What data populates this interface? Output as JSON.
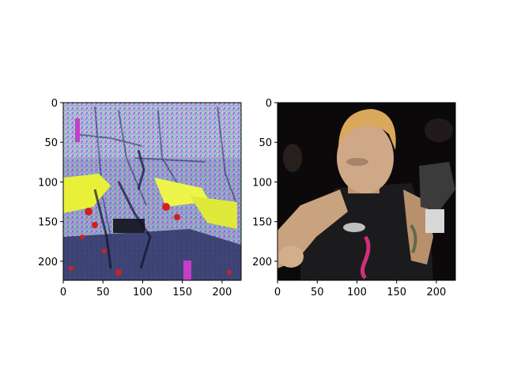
{
  "chart_data": [
    {
      "type": "image",
      "title": "",
      "xlabel": "",
      "ylabel": "",
      "xlim": [
        0,
        224
      ],
      "ylim": [
        224,
        0
      ],
      "x_ticks": [
        {
          "value": 0,
          "label": "0"
        },
        {
          "value": 50,
          "label": "50"
        },
        {
          "value": 100,
          "label": "100"
        },
        {
          "value": 150,
          "label": "150"
        },
        {
          "value": 200,
          "label": "200"
        }
      ],
      "y_ticks": [
        {
          "value": 0,
          "label": "0"
        },
        {
          "value": 50,
          "label": "50"
        },
        {
          "value": 100,
          "label": "100"
        },
        {
          "value": 150,
          "label": "150"
        },
        {
          "value": 200,
          "label": "200"
        }
      ],
      "content": "glitched-colorized-photo",
      "colors": {
        "base": "#9aa3cf",
        "highlight": "#e8f03a",
        "accent_red": "#d21f22",
        "accent_magenta": "#c23fc8",
        "dark": "#2f3566"
      }
    },
    {
      "type": "image",
      "title": "",
      "xlabel": "",
      "ylabel": "",
      "xlim": [
        0,
        224
      ],
      "ylim": [
        224,
        0
      ],
      "x_ticks": [
        {
          "value": 0,
          "label": "0"
        },
        {
          "value": 50,
          "label": "50"
        },
        {
          "value": 100,
          "label": "100"
        },
        {
          "value": 150,
          "label": "150"
        },
        {
          "value": 200,
          "label": "200"
        }
      ],
      "y_ticks": [
        {
          "value": 0,
          "label": "0"
        },
        {
          "value": 50,
          "label": "50"
        },
        {
          "value": 100,
          "label": "100"
        },
        {
          "value": 150,
          "label": "150"
        },
        {
          "value": 200,
          "label": "200"
        }
      ],
      "content": "fighter-photo",
      "colors": {
        "background": "#0b0909",
        "skin": "#c9a27f",
        "hair": "#d9a85a",
        "shirt": "#1b1b1d",
        "accent_pink": "#d0307a"
      }
    }
  ]
}
